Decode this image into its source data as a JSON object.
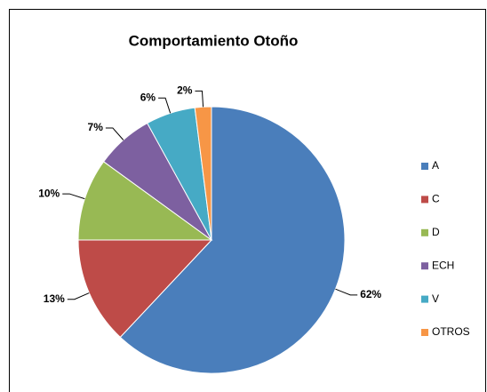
{
  "chart_data": {
    "type": "pie",
    "title": "Comportamiento Otoño",
    "categories": [
      "A",
      "C",
      "D",
      "ECH",
      "V",
      "OTROS"
    ],
    "values": [
      62,
      13,
      10,
      7,
      6,
      2
    ],
    "value_labels": [
      "62%",
      "13%",
      "10%",
      "7%",
      "6%",
      "2%"
    ],
    "colors": [
      "#4a7ebb",
      "#be4b48",
      "#98b954",
      "#7d60a0",
      "#46aac5",
      "#f79646"
    ],
    "legend": "right"
  }
}
